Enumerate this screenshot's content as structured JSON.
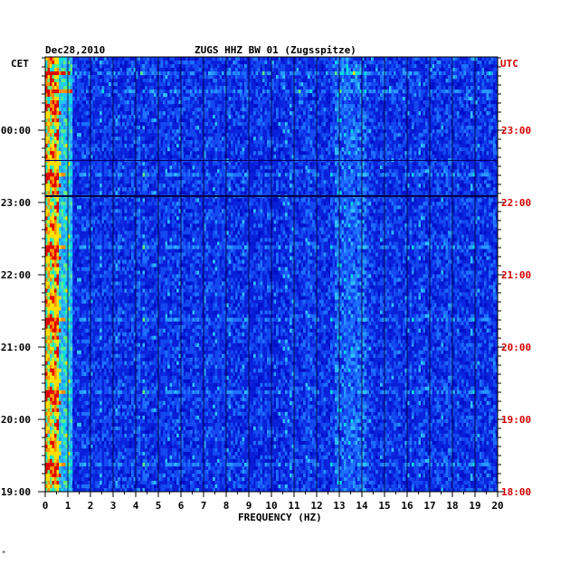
{
  "header": {
    "date": "Dec28,2010",
    "title": "ZUGS HHZ BW 01 (Zugsspitze)"
  },
  "chart_data": {
    "type": "heatmap",
    "title": "ZUGS HHZ BW 01 (Zugsspitze)",
    "date": "Dec28,2010",
    "xlabel": "FREQUENCY (HZ)",
    "xlim": [
      0,
      20
    ],
    "x_ticks": [
      "0",
      "1",
      "2",
      "3",
      "4",
      "5",
      "6",
      "7",
      "8",
      "9",
      "10",
      "11",
      "12",
      "13",
      "14",
      "15",
      "16",
      "17",
      "18",
      "19",
      "20"
    ],
    "left_axis_label": "CET",
    "left_ticks": [
      "00:00",
      "23:00",
      "22:00",
      "21:00",
      "20:00",
      "19:00"
    ],
    "right_axis_label": "UTC",
    "right_ticks": [
      "23:00",
      "22:00",
      "21:00",
      "20:00",
      "19:00",
      "18:00"
    ],
    "colors": {
      "background": "#0a1fd8",
      "low": "#0000b0",
      "mid": "#1e78ff",
      "high": "#00d0d0",
      "peak": "#ffe000",
      "max": "#e00000",
      "right_axis_text": "#d40000"
    }
  },
  "footer": {
    "mark": "*"
  }
}
